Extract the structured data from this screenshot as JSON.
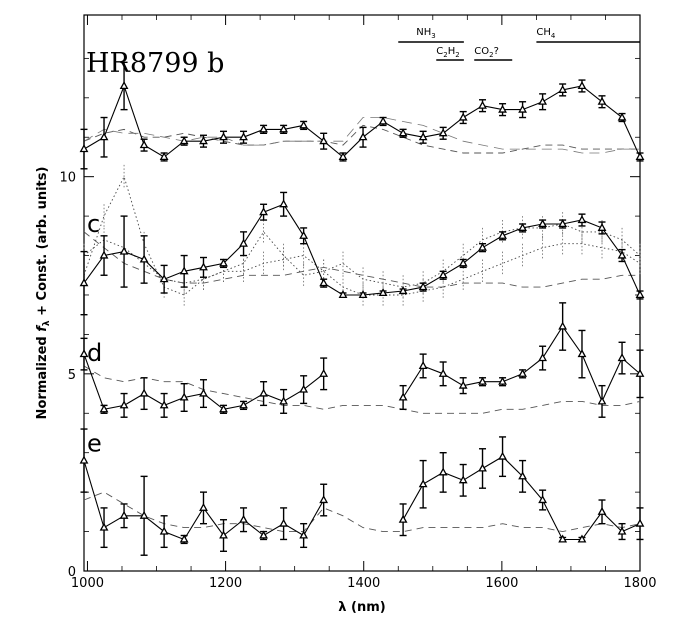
{
  "chart_data": {
    "type": "line",
    "title": "HR8799 b",
    "xlabel": "λ (nm)",
    "ylabel": "Normalized f_λ + Const. (arb. units)",
    "xlim": [
      995,
      1800
    ],
    "ylim": [
      0,
      14.1
    ],
    "x_ticks": [
      1000,
      1200,
      1400,
      1600,
      1800
    ],
    "x_tick_labels": [
      "1000",
      "1200",
      "1400",
      "1600",
      "1800"
    ],
    "y_ticks": [
      0,
      5,
      10
    ],
    "y_tick_labels": [
      "0",
      "5",
      "10"
    ],
    "grid": false,
    "legend": "none",
    "band_labels": [
      {
        "label": "NH",
        "sub": "3",
        "tail": "",
        "x_start": 1450,
        "x_end": 1545
      },
      {
        "label": "C",
        "sub": "2",
        "tail": "H",
        "sub2": "2",
        "x_start": 1505,
        "x_end": 1545
      },
      {
        "label": "CO",
        "sub": "2",
        "tail": "?",
        "x_start": 1560,
        "x_end": 1615
      },
      {
        "label": "CH",
        "sub": "4",
        "tail": "",
        "x_start": 1650,
        "x_end": 1800
      }
    ],
    "series": [
      {
        "name": "b",
        "label": "",
        "x": [
          995,
          1024,
          1053,
          1082,
          1111,
          1140,
          1168,
          1197,
          1226,
          1255,
          1284,
          1313,
          1342,
          1370,
          1399,
          1428,
          1457,
          1486,
          1515,
          1544,
          1572,
          1601,
          1630,
          1659,
          1688,
          1716,
          1745,
          1774,
          1800
        ],
        "y": [
          10.7,
          11.0,
          12.3,
          10.8,
          10.5,
          10.9,
          10.9,
          11.0,
          11.0,
          11.2,
          11.2,
          11.3,
          10.9,
          10.5,
          11.0,
          11.4,
          11.1,
          11.0,
          11.1,
          11.5,
          11.8,
          11.7,
          11.7,
          11.9,
          12.2,
          12.3,
          11.9,
          11.5,
          10.5
        ],
        "err": [
          0.5,
          0.5,
          0.6,
          0.15,
          0.1,
          0.1,
          0.15,
          0.15,
          0.15,
          0.1,
          0.1,
          0.1,
          0.2,
          0.1,
          0.25,
          0.1,
          0.1,
          0.15,
          0.15,
          0.15,
          0.15,
          0.15,
          0.2,
          0.2,
          0.15,
          0.15,
          0.15,
          0.1,
          0.1
        ],
        "model": [
          10.9,
          11.1,
          11.2,
          11.0,
          11.0,
          11.1,
          11.0,
          10.9,
          10.8,
          10.8,
          10.9,
          10.9,
          10.9,
          10.8,
          11.3,
          11.2,
          11.0,
          10.8,
          10.7,
          10.6,
          10.6,
          10.6,
          10.7,
          10.8,
          10.8,
          10.7,
          10.7,
          10.7,
          10.7
        ],
        "model_offset": [
          0.0,
          0.1,
          -0.1,
          0.1,
          0.0,
          -0.2,
          0.0,
          0.1,
          0.0,
          0.0,
          0.0,
          0.0,
          0.0,
          0.1,
          0.2,
          0.3,
          0.4,
          0.5,
          0.4,
          0.3,
          0.2,
          0.1,
          0.0,
          -0.1,
          -0.1,
          -0.1,
          -0.1,
          0.0,
          0.0
        ]
      },
      {
        "name": "c",
        "label": "c",
        "x": [
          995,
          1024,
          1053,
          1082,
          1111,
          1140,
          1168,
          1197,
          1226,
          1255,
          1284,
          1313,
          1342,
          1370,
          1399,
          1428,
          1457,
          1486,
          1515,
          1544,
          1572,
          1601,
          1630,
          1659,
          1688,
          1716,
          1745,
          1774,
          1800
        ],
        "y": [
          7.3,
          8.0,
          8.1,
          7.9,
          7.4,
          7.6,
          7.7,
          7.8,
          8.3,
          9.1,
          9.3,
          8.5,
          7.3,
          7.0,
          7.0,
          7.05,
          7.1,
          7.2,
          7.5,
          7.8,
          8.2,
          8.5,
          8.7,
          8.8,
          8.8,
          8.9,
          8.7,
          8.0,
          7.0
        ],
        "err": [
          0.8,
          0.5,
          0.9,
          0.6,
          0.35,
          0.4,
          0.25,
          0.1,
          0.3,
          0.2,
          0.3,
          0.2,
          0.1,
          0.05,
          0.05,
          0.05,
          0.05,
          0.1,
          0.1,
          0.1,
          0.1,
          0.1,
          0.1,
          0.1,
          0.1,
          0.15,
          0.15,
          0.15,
          0.1
        ],
        "model": [
          8.6,
          8.2,
          7.8,
          7.6,
          7.4,
          7.3,
          7.3,
          7.4,
          7.5,
          7.5,
          7.5,
          7.6,
          7.7,
          7.6,
          7.5,
          7.4,
          7.3,
          7.2,
          7.2,
          7.3,
          7.3,
          7.3,
          7.2,
          7.2,
          7.3,
          7.4,
          7.4,
          7.5,
          7.5
        ],
        "dotted": [
          7.5,
          9.0,
          10.0,
          8.3,
          7.2,
          7.0,
          7.4,
          7.6,
          7.8,
          8.6,
          8.0,
          7.5,
          7.6,
          7.8,
          7.4,
          7.3,
          7.2,
          7.3,
          7.6,
          8.0,
          8.4,
          8.6,
          8.7,
          8.7,
          8.8,
          8.6,
          8.6,
          8.4,
          8.0
        ],
        "dotted2": [
          8.0,
          8.4,
          8.2,
          7.8,
          7.4,
          7.3,
          7.4,
          7.6,
          7.6,
          7.8,
          7.9,
          8.0,
          7.6,
          7.2,
          7.0,
          7.0,
          7.0,
          7.1,
          7.2,
          7.4,
          7.6,
          7.8,
          8.0,
          8.2,
          8.3,
          8.3,
          8.2,
          8.1,
          7.8
        ]
      },
      {
        "name": "d",
        "label": "d",
        "x": [
          995,
          1024,
          1053,
          1082,
          1111,
          1140,
          1168,
          1197,
          1226,
          1255,
          1284,
          1313,
          1342,
          1457,
          1486,
          1515,
          1544,
          1572,
          1601,
          1630,
          1659,
          1688,
          1716,
          1745,
          1774,
          1800
        ],
        "y": [
          5.5,
          4.1,
          4.2,
          4.5,
          4.2,
          4.4,
          4.5,
          4.1,
          4.2,
          4.5,
          4.3,
          4.6,
          5.0,
          4.4,
          5.2,
          5.0,
          4.7,
          4.8,
          4.8,
          5.0,
          5.4,
          6.2,
          5.5,
          4.3,
          5.4,
          5.0
        ],
        "err": [
          0.4,
          0.1,
          0.3,
          0.4,
          0.3,
          0.35,
          0.35,
          0.1,
          0.1,
          0.3,
          0.3,
          0.35,
          0.4,
          0.3,
          0.3,
          0.3,
          0.2,
          0.1,
          0.1,
          0.1,
          0.3,
          0.6,
          0.6,
          0.4,
          0.4,
          0.6
        ],
        "model_x": [
          995,
          1024,
          1053,
          1082,
          1111,
          1140,
          1168,
          1197,
          1226,
          1255,
          1284,
          1313,
          1342,
          1370,
          1399,
          1428,
          1457,
          1486,
          1515,
          1544,
          1572,
          1601,
          1630,
          1659,
          1688,
          1716,
          1745,
          1774,
          1800
        ],
        "model": [
          5.2,
          4.9,
          4.8,
          4.9,
          4.8,
          4.8,
          4.6,
          4.5,
          4.4,
          4.3,
          4.2,
          4.2,
          4.1,
          4.2,
          4.2,
          4.2,
          4.1,
          4.0,
          4.0,
          4.0,
          4.0,
          4.1,
          4.1,
          4.2,
          4.3,
          4.3,
          4.2,
          4.2,
          4.3
        ]
      },
      {
        "name": "e",
        "label": "e",
        "x": [
          995,
          1024,
          1053,
          1082,
          1111,
          1140,
          1168,
          1197,
          1226,
          1255,
          1284,
          1313,
          1342,
          1457,
          1486,
          1515,
          1544,
          1572,
          1601,
          1630,
          1659,
          1688,
          1716,
          1745,
          1774,
          1800
        ],
        "y": [
          2.8,
          1.1,
          1.4,
          1.4,
          1.0,
          0.8,
          1.6,
          0.9,
          1.3,
          0.9,
          1.2,
          0.9,
          1.8,
          1.3,
          2.2,
          2.5,
          2.3,
          2.6,
          2.9,
          2.4,
          1.8,
          0.8,
          0.8,
          1.5,
          1.0,
          1.2
        ],
        "err": [
          0.8,
          0.5,
          0.3,
          1.0,
          0.4,
          0.1,
          0.4,
          0.4,
          0.3,
          0.1,
          0.4,
          0.3,
          0.4,
          0.4,
          0.6,
          0.5,
          0.4,
          0.5,
          0.5,
          0.4,
          0.25,
          0.05,
          0.05,
          0.3,
          0.2,
          0.4
        ],
        "model_x": [
          995,
          1024,
          1053,
          1082,
          1111,
          1140,
          1168,
          1197,
          1226,
          1255,
          1284,
          1313,
          1342,
          1370,
          1399,
          1428,
          1457,
          1486,
          1515,
          1544,
          1572,
          1601,
          1630,
          1659,
          1688,
          1716,
          1745,
          1774,
          1800
        ],
        "model": [
          1.8,
          2.0,
          1.7,
          1.4,
          1.2,
          1.1,
          1.1,
          1.2,
          1.2,
          1.1,
          1.0,
          1.0,
          1.6,
          1.4,
          1.1,
          1.0,
          1.0,
          1.1,
          1.1,
          1.1,
          1.1,
          1.2,
          1.1,
          1.1,
          1.0,
          1.1,
          1.2,
          1.1,
          1.2
        ]
      }
    ]
  }
}
